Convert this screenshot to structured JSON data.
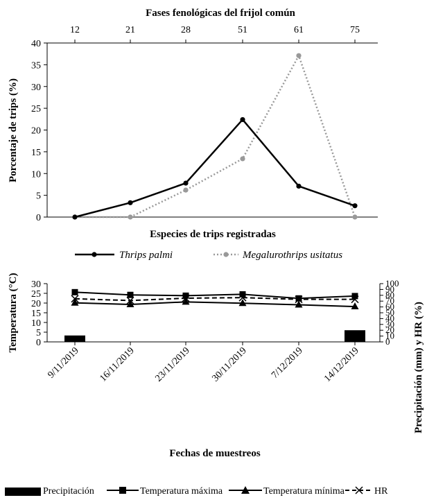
{
  "chart_data": [
    {
      "type": "line",
      "title": "Fases fenológicas del frijol común",
      "xlabel": "Especies de trips registradas",
      "ylabel": "Porcentaje de trips (%)",
      "categories": [
        "12",
        "21",
        "28",
        "51",
        "61",
        "75"
      ],
      "ylim": [
        0,
        40
      ],
      "y_ticks": [
        "0",
        "5",
        "10",
        "15",
        "20",
        "25",
        "30",
        "35",
        "40"
      ],
      "grid": false,
      "legend_position": "bottom",
      "series": [
        {
          "name": "Thrips palmi",
          "values": [
            0,
            3.3,
            7.8,
            22.4,
            7.1,
            2.6
          ],
          "color": "#000000",
          "style": "solid",
          "marker": "circle"
        },
        {
          "name": "Megalurothrips usitatus",
          "values": [
            0,
            0,
            6.2,
            13.4,
            37.1,
            0
          ],
          "color": "#999999",
          "style": "dotted",
          "marker": "circle"
        }
      ]
    },
    {
      "type": "line",
      "xlabel": "Fechas de muestreos",
      "ylabel": "Temperatura (°C)",
      "ylabel_right": "Precipitación (mm) y HR (%)",
      "categories": [
        "9/11/2019",
        "16/11/2019",
        "23/11/2019",
        "30/11/2019",
        "7/12/2019",
        "14/12/2019"
      ],
      "ylim": [
        0,
        30
      ],
      "ylim_right": [
        0,
        100
      ],
      "y_ticks": [
        "0",
        "5",
        "10",
        "15",
        "20",
        "25",
        "30"
      ],
      "y_ticks_right": [
        "0",
        "10",
        "20",
        "30",
        "40",
        "50",
        "60",
        "70",
        "80",
        "90",
        "100"
      ],
      "grid": false,
      "legend_position": "bottom",
      "series": [
        {
          "name": "Precipitación",
          "type": "bar",
          "axis": "right",
          "values": [
            11,
            0,
            0,
            0,
            0,
            20
          ],
          "color": "#000000"
        },
        {
          "name": "Temperatura máxima",
          "axis": "left",
          "values": [
            25.6,
            24.2,
            23.8,
            24.5,
            22.4,
            23.6
          ],
          "marker": "square",
          "style": "solid"
        },
        {
          "name": "Temperatura mínima",
          "axis": "left",
          "values": [
            20.1,
            19.3,
            20.6,
            19.9,
            19.1,
            18.2
          ],
          "marker": "triangle",
          "style": "solid"
        },
        {
          "name": "HR",
          "axis": "right",
          "values": [
            74,
            71,
            75,
            76,
            73,
            73
          ],
          "marker": "x",
          "style": "dashed"
        }
      ]
    }
  ]
}
